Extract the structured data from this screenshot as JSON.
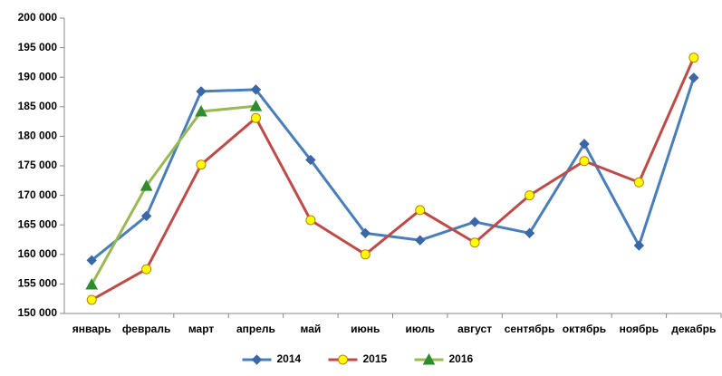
{
  "chart_data": {
    "type": "line",
    "categories": [
      "январь",
      "февраль",
      "март",
      "апрель",
      "май",
      "июнь",
      "июль",
      "август",
      "сентябрь",
      "октябрь",
      "ноябрь",
      "декабрь"
    ],
    "series": [
      {
        "name": "2014",
        "color": "#4a7ebb",
        "marker": "diamond",
        "marker_color": "#3a67a8",
        "values": [
          159000,
          166500,
          187600,
          187900,
          176000,
          163600,
          162400,
          165500,
          163600,
          178700,
          161500,
          189900
        ]
      },
      {
        "name": "2015",
        "color": "#be4b48",
        "marker": "circle",
        "marker_color": "#ffff00",
        "values": [
          152300,
          157500,
          175200,
          183100,
          165800,
          160000,
          167500,
          162000,
          170000,
          175800,
          172200,
          193300
        ]
      },
      {
        "name": "2016",
        "color": "#98b954",
        "marker": "triangle",
        "marker_color": "#2e8b2e",
        "values": [
          154900,
          171600,
          184200,
          185100,
          null,
          null,
          null,
          null,
          null,
          null,
          null,
          null
        ]
      }
    ],
    "ylim": [
      150000,
      200000
    ],
    "yticks": [
      {
        "value": 150000,
        "label": "150 000"
      },
      {
        "value": 155000,
        "label": "155 000"
      },
      {
        "value": 160000,
        "label": "160 000"
      },
      {
        "value": 165000,
        "label": "165 000"
      },
      {
        "value": 170000,
        "label": "170 000"
      },
      {
        "value": 175000,
        "label": "175 000"
      },
      {
        "value": 180000,
        "label": "180 000"
      },
      {
        "value": 185000,
        "label": "185 000"
      },
      {
        "value": 190000,
        "label": "190 000"
      },
      {
        "value": 195000,
        "label": "195 000"
      },
      {
        "value": 200000,
        "label": "200 000"
      }
    ],
    "grid": false,
    "legend": "bottom"
  }
}
